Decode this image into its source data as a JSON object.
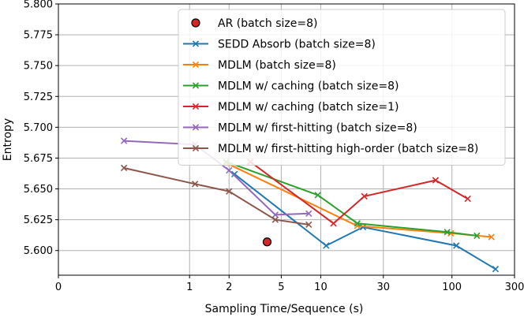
{
  "chart_data": {
    "type": "line",
    "title": "",
    "xlabel": "Sampling Time/Sequence (s)",
    "ylabel": "Entropy",
    "x_scale": "symlog",
    "xlim": [
      0,
      300
    ],
    "ylim": [
      5.58,
      5.8
    ],
    "x_ticks": [
      0,
      1,
      2,
      5,
      10,
      30,
      100,
      300
    ],
    "x_tick_labels": [
      "0",
      "1",
      "2",
      "5",
      "10",
      "30",
      "100",
      "300"
    ],
    "y_ticks": [
      5.6,
      5.625,
      5.65,
      5.675,
      5.7,
      5.725,
      5.75,
      5.775,
      5.8
    ],
    "y_tick_labels": [
      "5.600",
      "5.625",
      "5.650",
      "5.675",
      "5.700",
      "5.725",
      "5.750",
      "5.775",
      "5.800"
    ],
    "grid": true,
    "legend_position": "top-right",
    "series": [
      {
        "name": "AR (batch size=8)",
        "color": "#d62728",
        "marker": "circle",
        "x": [
          3.9
        ],
        "y": [
          5.607
        ]
      },
      {
        "name": "SEDD Absorb (batch size=8)",
        "color": "#1f77b4",
        "marker": "x",
        "x": [
          2.2,
          11,
          21,
          108,
          215
        ],
        "y": [
          5.662,
          5.604,
          5.619,
          5.604,
          5.585
        ]
      },
      {
        "name": "MDLM (batch size=8)",
        "color": "#ff7f0e",
        "marker": "x",
        "x": [
          1.9,
          19,
          98,
          200
        ],
        "y": [
          5.671,
          5.62,
          5.614,
          5.611
        ]
      },
      {
        "name": "MDLM w/ caching (batch size=8)",
        "color": "#2ca02c",
        "marker": "x",
        "x": [
          1.9,
          9.5,
          19,
          92,
          155
        ],
        "y": [
          5.672,
          5.645,
          5.622,
          5.615,
          5.612
        ]
      },
      {
        "name": "MDLM w/ caching (batch size=1)",
        "color": "#d62728",
        "marker": "x",
        "x": [
          2.9,
          12.5,
          21.5,
          75,
          132
        ],
        "y": [
          5.672,
          5.622,
          5.644,
          5.657,
          5.642
        ]
      },
      {
        "name": "MDLM w/ first-hitting (batch size=8)",
        "color": "#9467bd",
        "marker": "x",
        "x": [
          0.5,
          1.1,
          2.0,
          4.5,
          8.1
        ],
        "y": [
          5.689,
          5.686,
          5.665,
          5.629,
          5.63
        ]
      },
      {
        "name": "MDLM w/ first-hitting high-order (batch size=8)",
        "color": "#8c564b",
        "marker": "x",
        "x": [
          0.5,
          1.1,
          2.0,
          4.5,
          8.1
        ],
        "y": [
          5.667,
          5.654,
          5.648,
          5.625,
          5.621
        ]
      }
    ]
  }
}
